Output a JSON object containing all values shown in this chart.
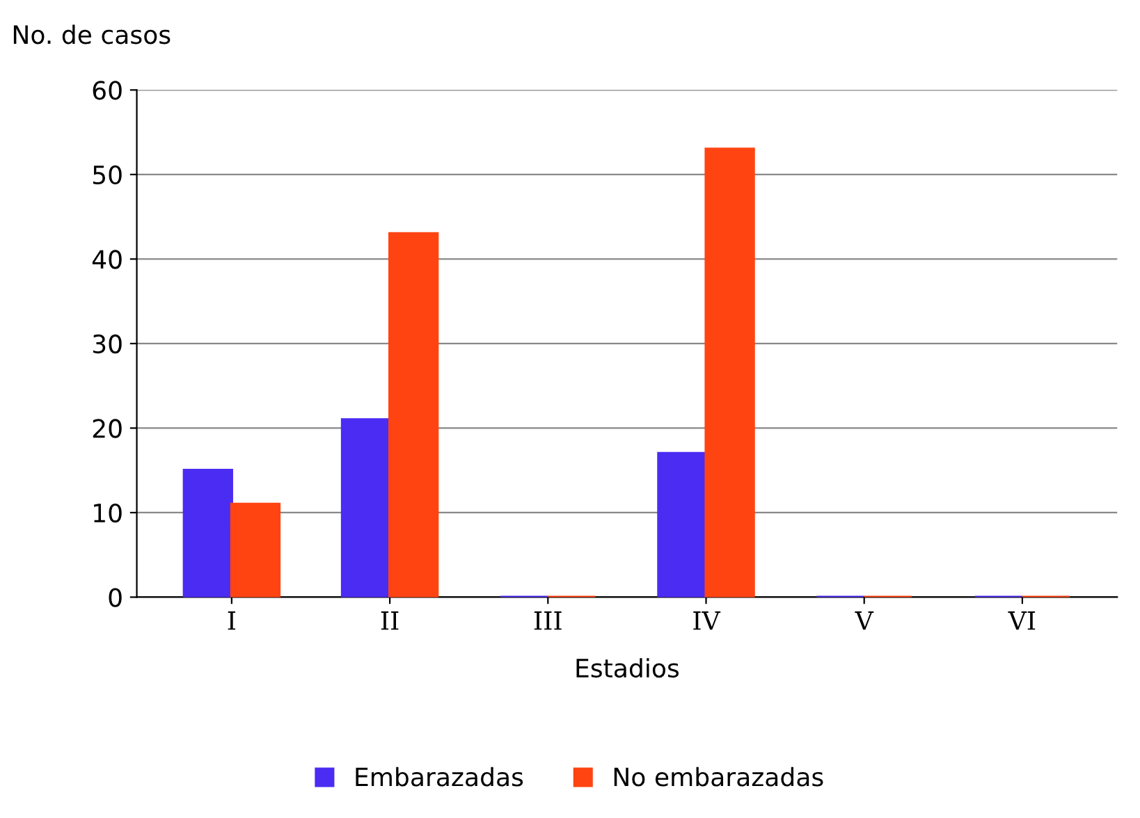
{
  "chart_data": {
    "type": "bar",
    "ylabel": "No. de casos",
    "xlabel": "Estadios",
    "categories": [
      "I",
      "II",
      "III",
      "IV",
      "V",
      "VI"
    ],
    "series": [
      {
        "name": "Embarazadas",
        "color": "#4a2cf2",
        "values": [
          15,
          21,
          0,
          17,
          0,
          0
        ]
      },
      {
        "name": "No embarazadas",
        "color": "#ff4412",
        "values": [
          11,
          43,
          0,
          53,
          0,
          0
        ]
      }
    ],
    "ylim": [
      0,
      60
    ],
    "yticks": [
      0,
      10,
      20,
      30,
      40,
      50,
      60
    ],
    "grid": "y",
    "legend": "bottom"
  }
}
